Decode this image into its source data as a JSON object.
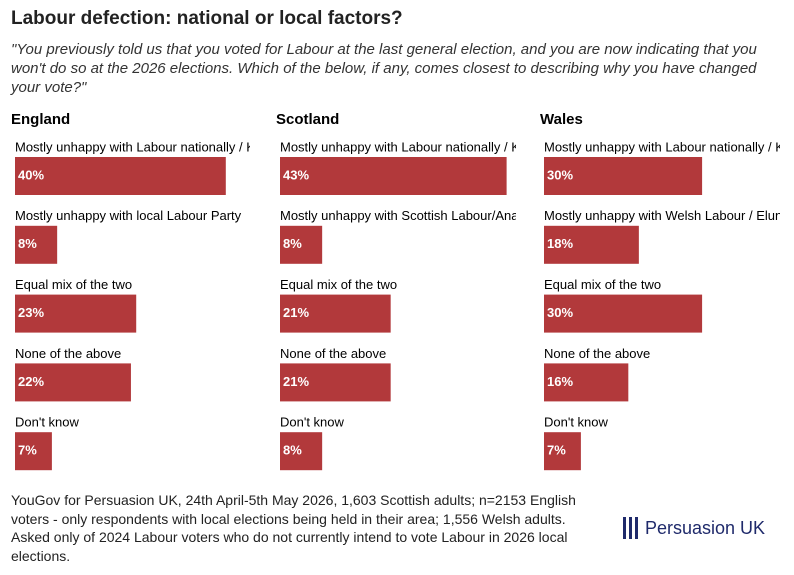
{
  "title": "Labour defection: national or local factors?",
  "subtitle": "\"You previously told us that you voted for Labour at the last general election, and you are now indicating that you won't do so at the 2026 elections. Which of the below, if any, comes closest to describing why you have changed your vote?\"",
  "source": "YouGov for Persuasion UK, 24th April-5th May 2026, 1,603 Scottish adults; n=2153 English voters - only respondents with local elections being held in their area; 1,556 Welsh adults. Asked only of 2024 Labour voters who do not currently intend to vote Labour in 2026 local elections.",
  "logo": "Persuasion UK",
  "chart_data": [
    {
      "type": "bar",
      "title": "England",
      "color": "#b2393b",
      "categories": [
        "Mostly unhappy with Labour nationally / K",
        "Mostly unhappy with local Labour Party",
        "Equal mix of the two",
        "None of the above",
        "Don't know"
      ],
      "values": [
        40,
        8,
        23,
        22,
        7
      ],
      "value_labels": [
        "40%",
        "8%",
        "23%",
        "22%",
        "7%"
      ]
    },
    {
      "type": "bar",
      "title": "Scotland",
      "color": "#b2393b",
      "categories": [
        "Mostly unhappy with Labour nationally / K",
        "Mostly unhappy with Scottish Labour/Ana",
        "Equal mix of the two",
        "None of the above",
        "Don't know"
      ],
      "values": [
        43,
        8,
        21,
        21,
        8
      ],
      "value_labels": [
        "43%",
        "8%",
        "21%",
        "21%",
        "8%"
      ]
    },
    {
      "type": "bar",
      "title": "Wales",
      "color": "#b2393b",
      "categories": [
        "Mostly unhappy with Labour nationally / K",
        "Mostly unhappy with Welsh Labour / Elun",
        "Equal mix of the two",
        "None of the above",
        "Don't know"
      ],
      "values": [
        30,
        18,
        30,
        16,
        7
      ],
      "value_labels": [
        "30%",
        "18%",
        "30%",
        "16%",
        "7%"
      ]
    }
  ]
}
